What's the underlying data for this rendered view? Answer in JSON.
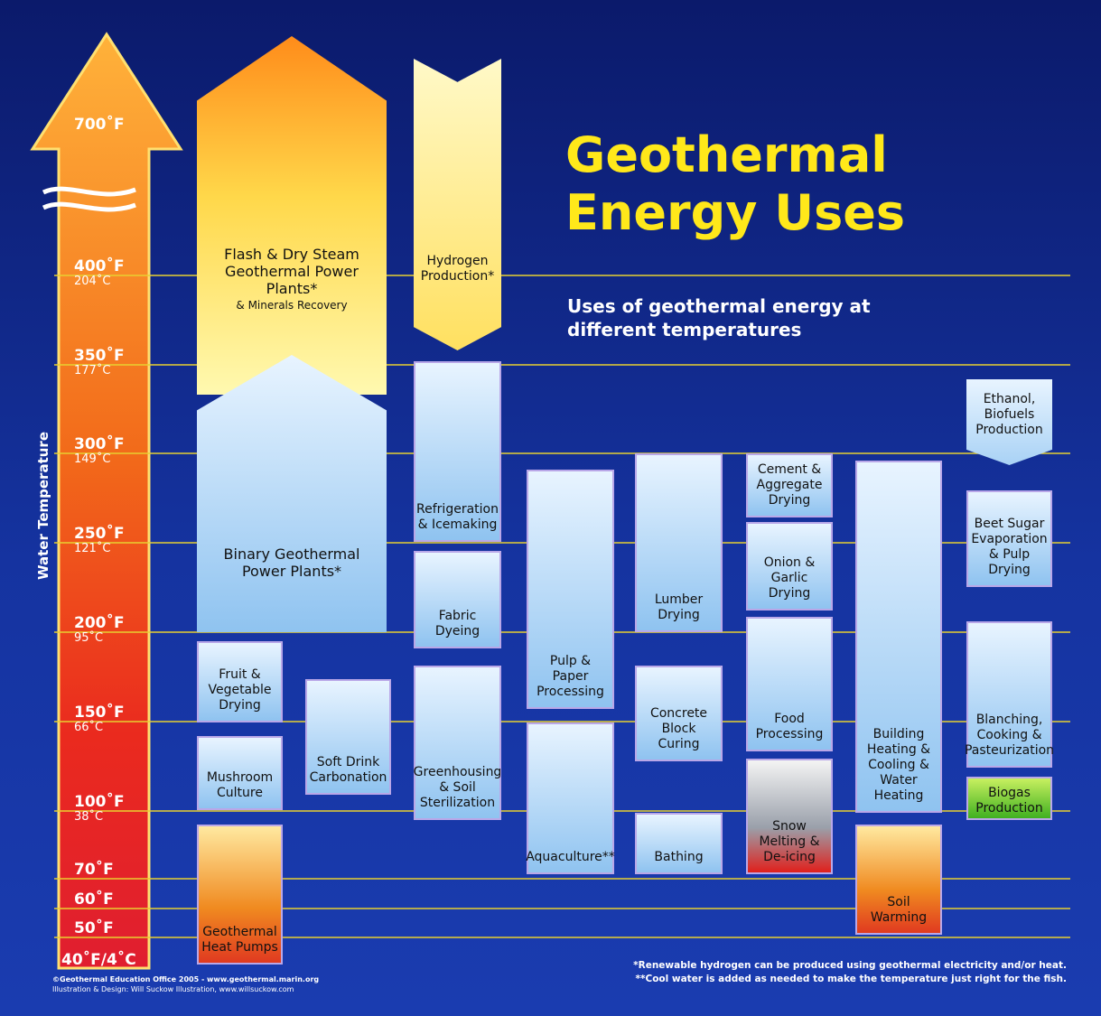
{
  "title": "Geothermal Energy Uses",
  "subtitle": "Uses of geothermal energy at different temperatures",
  "axis_label": "Water Temperature",
  "temperatures": [
    {
      "f": "700˚F"
    },
    {
      "f": "400˚F",
      "c": "204˚C"
    },
    {
      "f": "350˚F",
      "c": "177˚C"
    },
    {
      "f": "300˚F",
      "c": "149˚C"
    },
    {
      "f": "250˚F",
      "c": "121˚C"
    },
    {
      "f": "200˚F",
      "c": "95˚C"
    },
    {
      "f": "150˚F",
      "c": "66˚C"
    },
    {
      "f": "100˚F",
      "c": "38˚C"
    },
    {
      "f": "70˚F"
    },
    {
      "f": "60˚F"
    },
    {
      "f": "50˚F"
    },
    {
      "f": "40˚F/4˚C"
    }
  ],
  "uses": [
    {
      "label": "Flash & Dry Steam Geothermal Power Plants*",
      "note": "& Minerals Recovery"
    },
    {
      "label": "Binary Geothermal Power Plants*"
    },
    {
      "label": "Hydrogen Production*"
    },
    {
      "label": "Refrigeration & Icemaking"
    },
    {
      "label": "Fabric Dyeing"
    },
    {
      "label": "Greenhousing & Soil Sterilization"
    },
    {
      "label": "Pulp & Paper Processing"
    },
    {
      "label": "Aquaculture**"
    },
    {
      "label": "Lumber Drying"
    },
    {
      "label": "Concrete Block Curing"
    },
    {
      "label": "Bathing"
    },
    {
      "label": "Cement & Aggregate Drying"
    },
    {
      "label": "Onion & Garlic Drying"
    },
    {
      "label": "Food Processing"
    },
    {
      "label": "Snow Melting & De-icing"
    },
    {
      "label": "Building Heating & Cooling & Water Heating"
    },
    {
      "label": "Soil Warming"
    },
    {
      "label": "Ethanol, Biofuels Production"
    },
    {
      "label": "Beet Sugar Evaporation & Pulp Drying"
    },
    {
      "label": "Blanching, Cooking & Pasteurization"
    },
    {
      "label": "Biogas Production"
    },
    {
      "label": "Fruit & Vegetable Drying"
    },
    {
      "label": "Mushroom Culture"
    },
    {
      "label": "Soft Drink Carbonation"
    },
    {
      "label": "Geothermal Heat Pumps"
    }
  ],
  "footnotes": [
    "*Renewable hydrogen can be produced using geothermal electricity and/or heat.",
    "**Cool water is added as needed to make the temperature just right for the fish."
  ],
  "credits": [
    "©Geothermal Education Office 2005 - www.geothermal.marin.org",
    "Illustration & Design: Will Suckow Illustration, www.willsuckow.com"
  ]
}
